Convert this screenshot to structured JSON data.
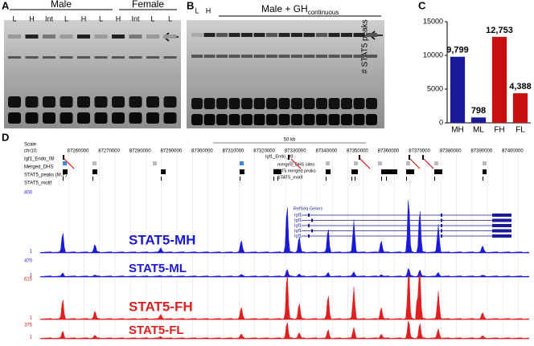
{
  "panels": {
    "a": {
      "label": "A",
      "groups": [
        "Male",
        "Female"
      ],
      "lanes": [
        "L",
        "H",
        "Int",
        "L",
        "H",
        "L",
        "H",
        "Int",
        "L",
        "L"
      ]
    },
    "b": {
      "label": "B",
      "lanes": [
        "L",
        "H"
      ],
      "group": "Male + GH",
      "group_sub": "continuous"
    },
    "c": {
      "label": "C"
    },
    "d": {
      "label": "D",
      "scale": "Scale",
      "chrom": "chr10:",
      "scale_bar": "50 kb",
      "coords": [
        "87260000",
        "87270000",
        "87280000",
        "87290000",
        "87300000",
        "87310000",
        "87320000",
        "87330000",
        "87340000",
        "87350000",
        "87360000",
        "87370000",
        "87380000",
        "87390000",
        "87400000"
      ],
      "track_labels": [
        "Igf1_Endo_08",
        "Merged_DHS",
        "STAT5_peaks (M,F)",
        "STAT5_motif"
      ],
      "inline_labels": [
        "Igf1_Endo_08",
        "merged_DHS sites",
        "STAT5 merged peaks",
        "STAT5_motif",
        "RefSeq Genes"
      ],
      "genes": [
        "Igf1",
        "Igf1",
        "Igf1",
        "Igf1",
        "Igf1"
      ],
      "signals": [
        {
          "name": "STAT5-MH",
          "top": "800",
          "bottom": "1",
          "color": "#1a1ad6"
        },
        {
          "name": "STAT5-ML",
          "top": "470",
          "bottom": "1",
          "color": "#1a1ad6"
        },
        {
          "name": "STAT5-FH",
          "top": "615",
          "bottom": "1",
          "color": "#e02020"
        },
        {
          "name": "STAT5-FL",
          "top": "375",
          "bottom": "1",
          "color": "#e02020"
        }
      ]
    }
  },
  "chart_data": {
    "type": "bar",
    "ylabel": "# STAT5 peaks",
    "categories": [
      "MH",
      "ML",
      "FH",
      "FL"
    ],
    "values": [
      9799,
      798,
      12753,
      4388
    ],
    "value_labels": [
      "9,799",
      "798",
      "12,753",
      "4,388"
    ],
    "colors": [
      "#1a1a9a",
      "#1a1a9a",
      "#c81010",
      "#c81010"
    ],
    "ylim": [
      0,
      15000
    ],
    "yticks": [
      0,
      5000,
      10000,
      15000
    ]
  }
}
